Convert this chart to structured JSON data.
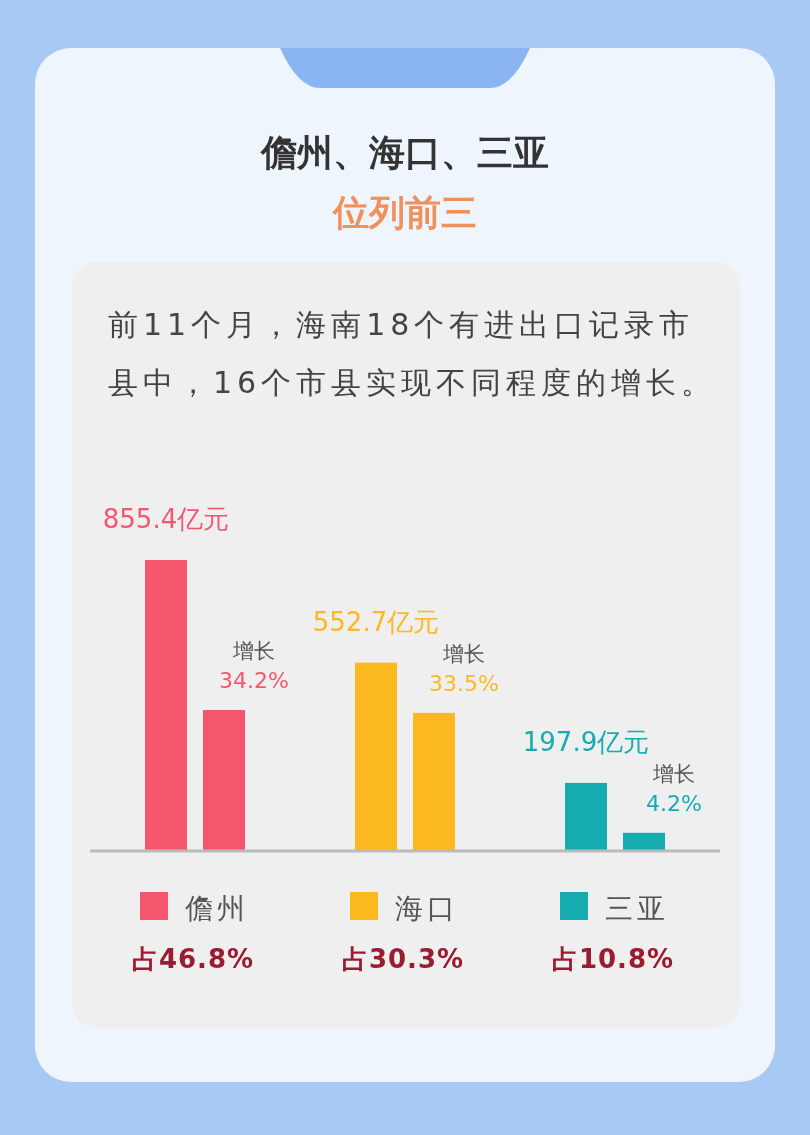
{
  "chart_data": {
    "type": "bar",
    "title": "儋州、海口、三亚",
    "subtitle": "位列前三",
    "categories": [
      "儋州",
      "海口",
      "三亚"
    ],
    "series": [
      {
        "colors": [
          "#f4566e",
          "#fbb81f",
          "#15acb0"
        ],
        "values": [
          855.4,
          552.7,
          197.9
        ],
        "value_labels": [
          "855.4亿元",
          "552.7亿元",
          "197.9亿元"
        ]
      },
      {
        "axis": "y2",
        "colors": [
          "#f4566e",
          "#fbb81f",
          "#15acb0"
        ],
        "values": [
          34.2,
          33.5,
          4.2
        ],
        "value_labels": [
          "34.2%",
          "33.5%",
          "4.2%"
        ]
      }
    ],
    "annotations": [
      "前11个月，海南18个有进出口记录市县中，16个市县实现不同程度的增长。",
      "占46.8%",
      "占30.3%",
      "占10.8%",
      "增长",
      "增长",
      "增长"
    ],
    "tick_labels": "x"
  }
}
